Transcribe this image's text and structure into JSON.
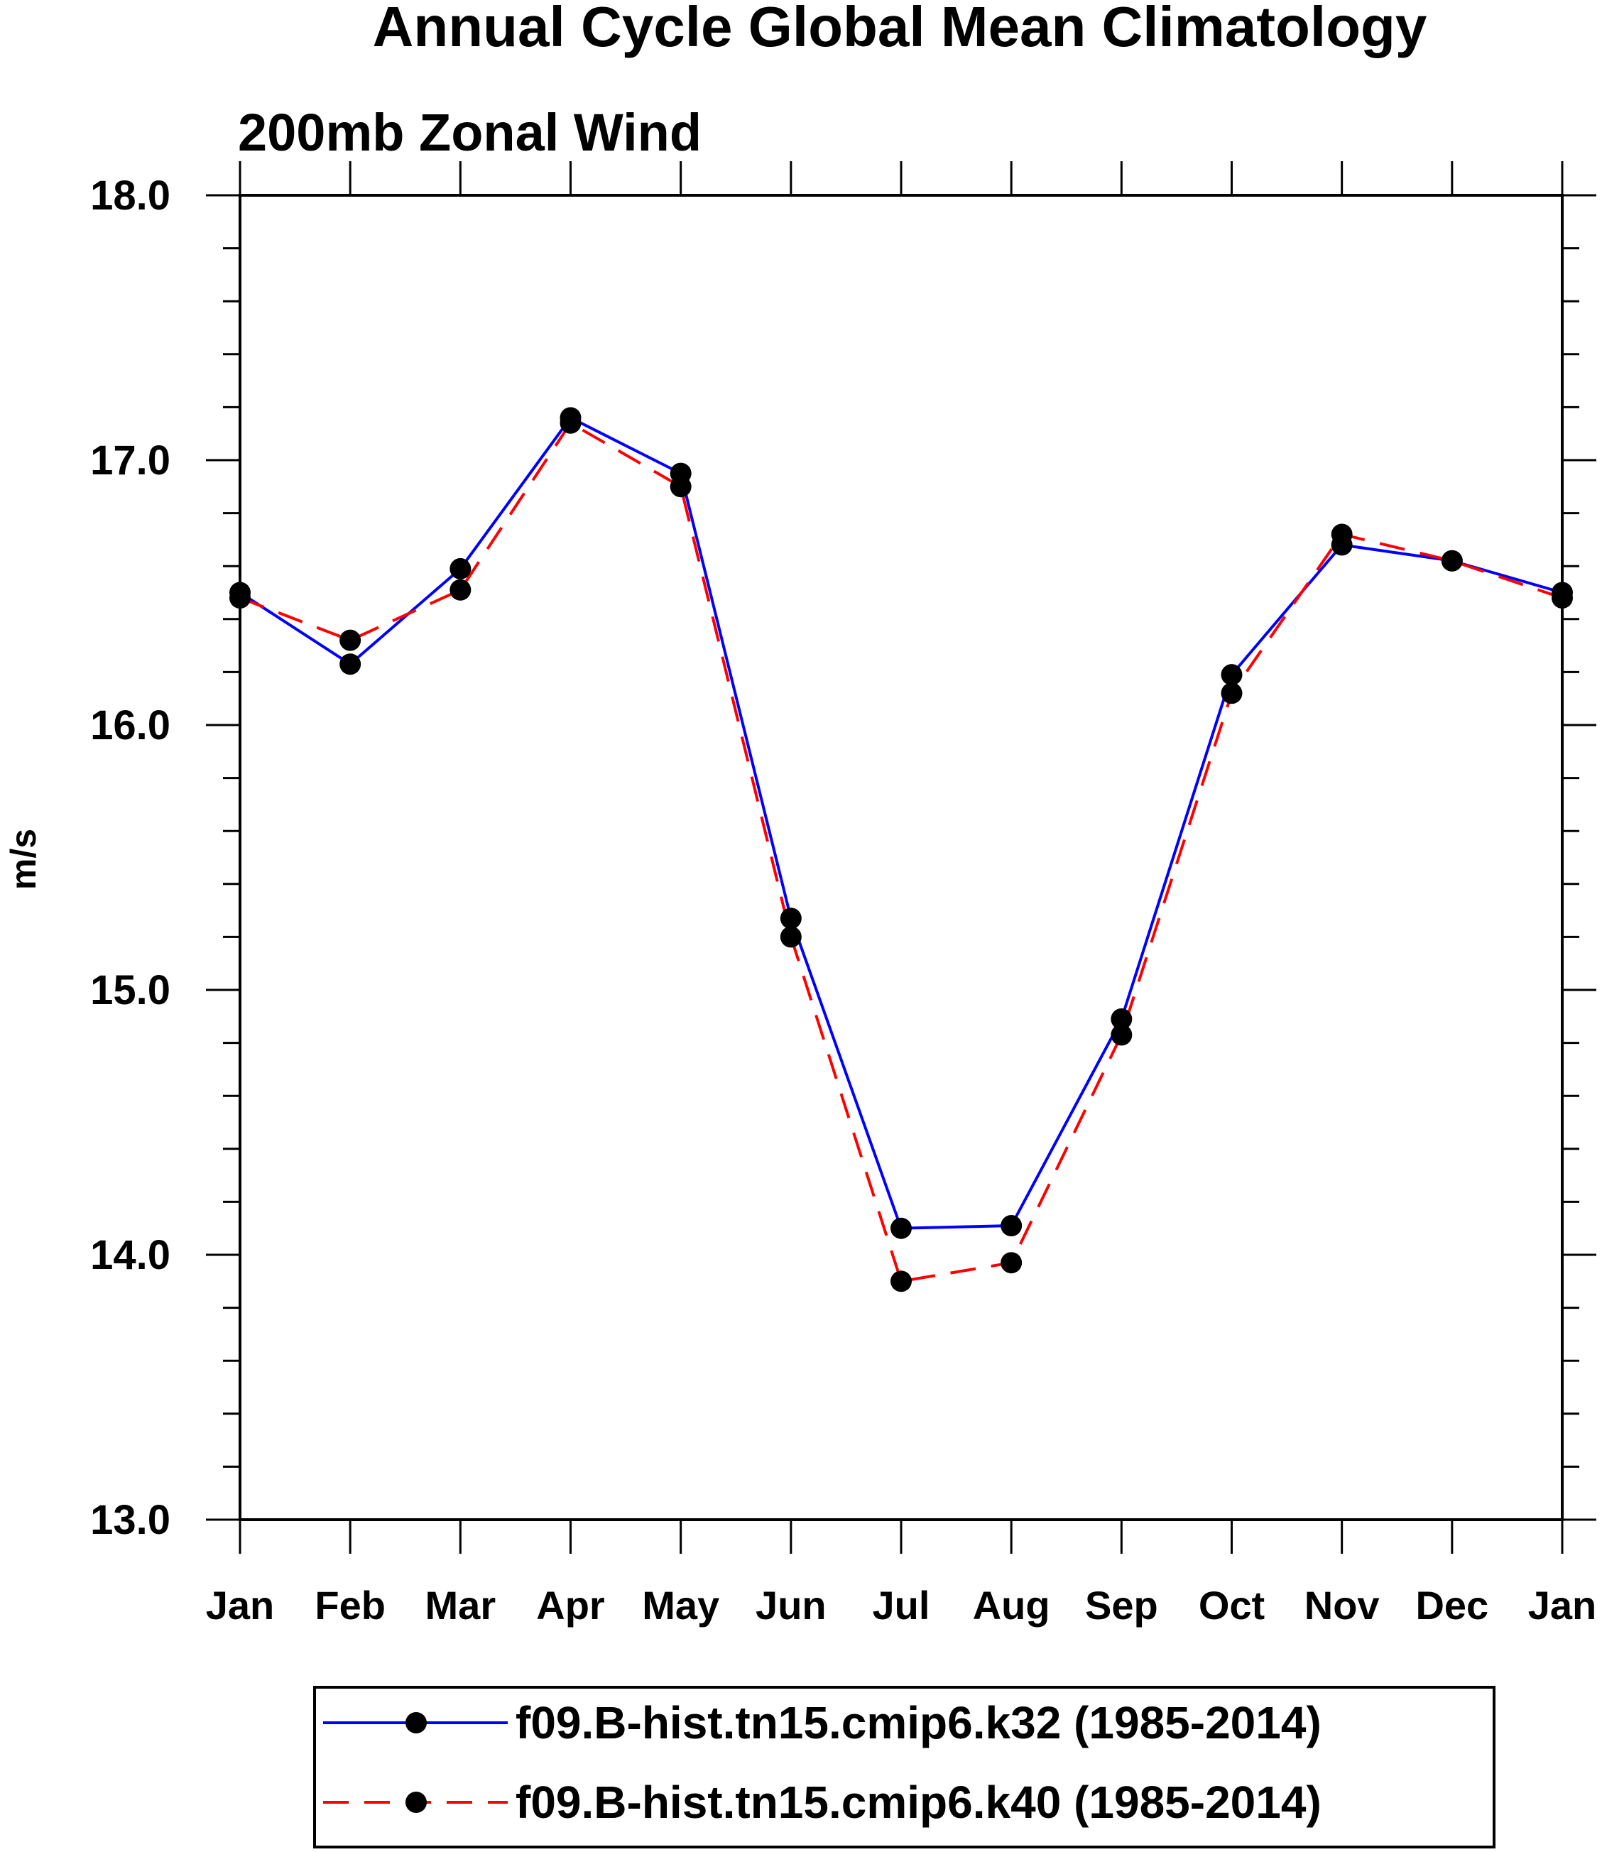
{
  "chart_data": {
    "type": "line",
    "title": "Annual Cycle Global Mean Climatology",
    "subtitle": "200mb Zonal Wind",
    "xlabel": "",
    "ylabel": "m/s",
    "categories": [
      "Jan",
      "Feb",
      "Mar",
      "Apr",
      "May",
      "Jun",
      "Jul",
      "Aug",
      "Sep",
      "Oct",
      "Nov",
      "Dec",
      "Jan"
    ],
    "ylim": [
      13.0,
      18.0
    ],
    "y_ticks": [
      "13.0",
      "14.0",
      "15.0",
      "16.0",
      "17.0",
      "18.0"
    ],
    "grid": false,
    "legend_position": "bottom",
    "series": [
      {
        "name": "f09.B-hist.tn15.cmip6.k32 (1985-2014)",
        "color": "#0000ff",
        "line_style": "solid",
        "marker": "filled-circle",
        "values": [
          16.5,
          16.23,
          16.59,
          17.16,
          16.95,
          15.27,
          14.1,
          14.11,
          14.89,
          16.19,
          16.68,
          16.62,
          16.5
        ]
      },
      {
        "name": "f09.B-hist.tn15.cmip6.k40 (1985-2014)",
        "color": "#ff0000",
        "line_style": "dashed",
        "marker": "filled-circle",
        "values": [
          16.48,
          16.32,
          16.51,
          17.14,
          16.9,
          15.2,
          13.9,
          13.97,
          14.83,
          16.12,
          16.72,
          16.62,
          16.48
        ]
      }
    ]
  }
}
